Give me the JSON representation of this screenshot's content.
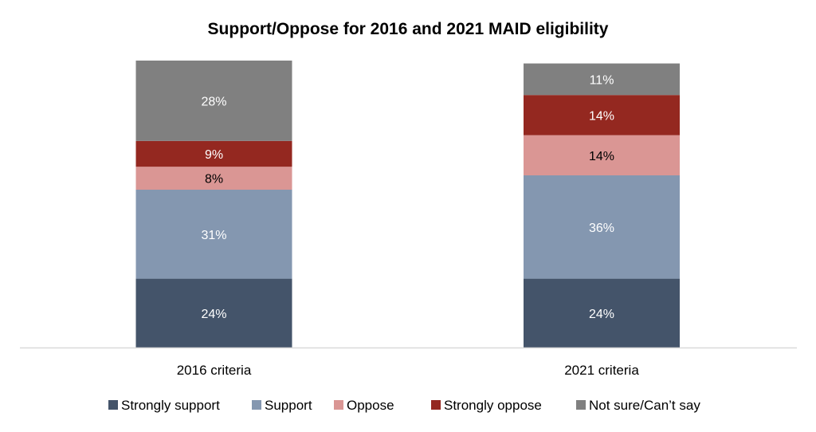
{
  "chart_data": {
    "type": "bar",
    "stacked": true,
    "title": "Support/Oppose for 2016 and 2021 MAID eligibility",
    "xlabel": "",
    "ylabel": "",
    "ylim": [
      0,
      100
    ],
    "grid": false,
    "legend_position": "bottom",
    "categories": [
      "2016 criteria",
      "2021 criteria"
    ],
    "series": [
      {
        "name": "Strongly support",
        "color": "#44546A",
        "label_color": "#FFFFFF",
        "values": [
          24,
          24
        ],
        "labels": [
          "24%",
          "24%"
        ]
      },
      {
        "name": "Support",
        "color": "#8497B0",
        "label_color": "#FFFFFF",
        "values": [
          31,
          36
        ],
        "labels": [
          "31%",
          "36%"
        ]
      },
      {
        "name": "Oppose",
        "color": "#DA9694",
        "label_color": "#000000",
        "values": [
          8,
          14
        ],
        "labels": [
          "8%",
          "14%"
        ]
      },
      {
        "name": "Strongly oppose",
        "color": "#942820",
        "label_color": "#FFFFFF",
        "values": [
          9,
          14
        ],
        "labels": [
          "9%",
          "14%"
        ]
      },
      {
        "name": "Not sure/Can’t say",
        "color": "#808080",
        "label_color": "#FFFFFF",
        "values": [
          28,
          11
        ],
        "labels": [
          "28%",
          "11%"
        ]
      }
    ]
  }
}
